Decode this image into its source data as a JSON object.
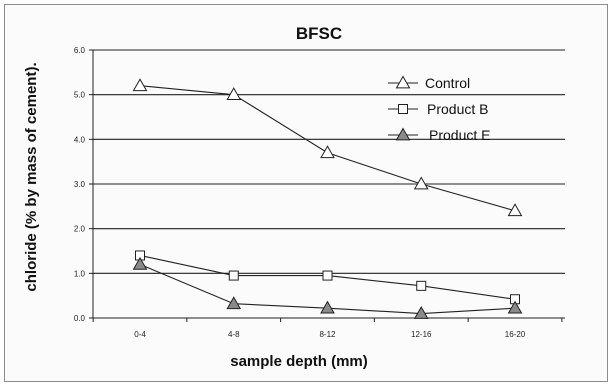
{
  "chart_data": {
    "type": "line",
    "title": "BFSC",
    "xlabel": "sample depth (mm)",
    "ylabel": "chloride (% by mass of cement).",
    "categories": [
      "0-4",
      "4-8",
      "8-12",
      "12-16",
      "16-20"
    ],
    "ylim": [
      0,
      6
    ],
    "yticks": [
      "0.0",
      "1.0",
      "2.0",
      "3.0",
      "4.0",
      "5.0",
      "6.0"
    ],
    "grid": true,
    "legend_position": "top-right",
    "series": [
      {
        "name": "Control",
        "marker": "triangle-open",
        "values": [
          5.2,
          5.0,
          3.7,
          3.0,
          2.4
        ]
      },
      {
        "name": "Product B",
        "marker": "square-open",
        "values": [
          1.4,
          0.95,
          0.95,
          0.72,
          0.42
        ]
      },
      {
        "name": "Product E",
        "marker": "triangle-filled",
        "values": [
          1.2,
          0.32,
          0.22,
          0.1,
          0.22
        ]
      }
    ]
  }
}
